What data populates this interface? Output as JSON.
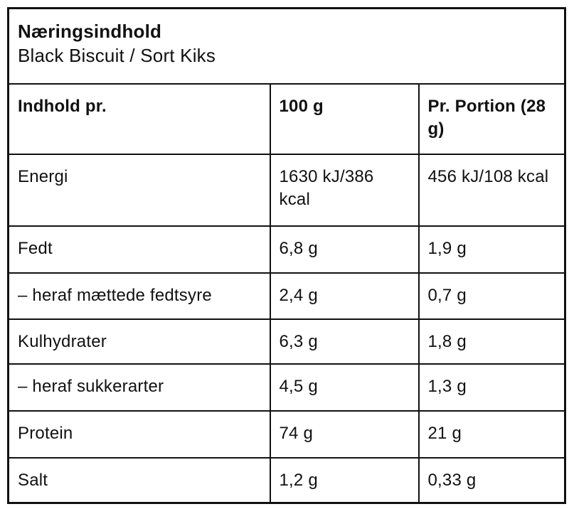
{
  "header": {
    "title": "Næringsindhold",
    "subtitle": "Black Biscuit / Sort Kiks"
  },
  "table": {
    "columns": [
      "Indhold pr.",
      "100 g",
      "Pr. Portion (28 g)"
    ],
    "rows": [
      {
        "label": "Energi",
        "per_100g": "1630 kJ/386 kcal",
        "per_portion": "456 kJ/108 kcal"
      },
      {
        "label": "Fedt",
        "per_100g": "6,8 g",
        "per_portion": "1,9 g"
      },
      {
        "label": "– heraf mættede fedtsyre",
        "per_100g": "2,4 g",
        "per_portion": "0,7 g"
      },
      {
        "label": "Kulhydrater",
        "per_100g": "6,3 g",
        "per_portion": "1,8 g"
      },
      {
        "label": "– heraf sukkerarter",
        "per_100g": "4,5 g",
        "per_portion": "1,3 g"
      },
      {
        "label": "Protein",
        "per_100g": "74 g",
        "per_portion": "21 g"
      },
      {
        "label": "Salt",
        "per_100g": "1,2 g",
        "per_portion": "0,33 g"
      }
    ]
  },
  "colors": {
    "text": "#111111",
    "border": "#111111",
    "background": "#ffffff"
  }
}
